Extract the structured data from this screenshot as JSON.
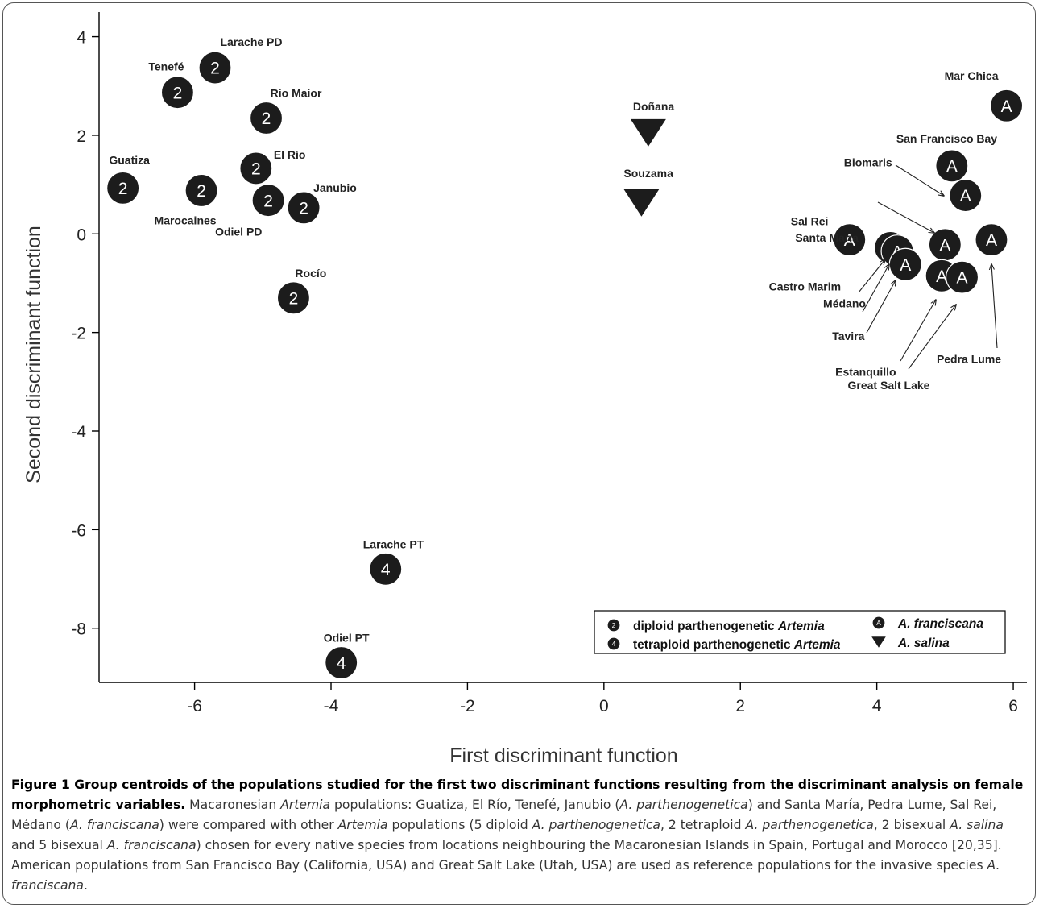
{
  "chart_data": {
    "type": "scatter",
    "xlabel": "First discriminant function",
    "ylabel": "Second discriminant function",
    "xlim": [
      -7.4,
      6.2
    ],
    "ylim": [
      -9.1,
      4.5
    ],
    "xticks": [
      "-6",
      "-4",
      "-2",
      "0",
      "2",
      "4",
      "6"
    ],
    "yticks": [
      "4",
      "2",
      "0",
      "-2",
      "-4",
      "-6",
      "-8"
    ],
    "points": [
      {
        "label": "Guatiza",
        "x": -7.05,
        "y": 0.93,
        "marker": "2",
        "group": "diploid"
      },
      {
        "label": "Marocaines",
        "x": -5.9,
        "y": 0.88,
        "marker": "2",
        "group": "diploid"
      },
      {
        "label": "Tenefé",
        "x": -6.25,
        "y": 2.87,
        "marker": "2",
        "group": "diploid"
      },
      {
        "label": "Larache PD",
        "x": -5.7,
        "y": 3.37,
        "marker": "2",
        "group": "diploid"
      },
      {
        "label": "Rio Maior",
        "x": -4.95,
        "y": 2.35,
        "marker": "2",
        "group": "diploid"
      },
      {
        "label": "El Río",
        "x": -5.1,
        "y": 1.33,
        "marker": "2",
        "group": "diploid"
      },
      {
        "label": "Odiel PD",
        "x": -4.92,
        "y": 0.68,
        "marker": "2",
        "group": "diploid"
      },
      {
        "label": "Janubio",
        "x": -4.4,
        "y": 0.53,
        "marker": "2",
        "group": "diploid"
      },
      {
        "label": "Rocío",
        "x": -4.55,
        "y": -1.3,
        "marker": "2",
        "group": "diploid"
      },
      {
        "label": "Larache PT",
        "x": -3.2,
        "y": -6.8,
        "marker": "4",
        "group": "tetraploid"
      },
      {
        "label": "Odiel PT",
        "x": -3.85,
        "y": -8.7,
        "marker": "4",
        "group": "tetraploid"
      },
      {
        "label": "Doñana",
        "x": 0.65,
        "y": 2.05,
        "marker": "tri",
        "group": "salina"
      },
      {
        "label": "Souzama",
        "x": 0.55,
        "y": 0.63,
        "marker": "tri",
        "group": "salina"
      },
      {
        "label": "Mar Chica",
        "x": 5.9,
        "y": 2.6,
        "marker": "A",
        "group": "franciscana"
      },
      {
        "label": "San Francisco Bay",
        "x": 5.1,
        "y": 1.38,
        "marker": "A",
        "group": "franciscana"
      },
      {
        "label": "Biomaris",
        "x": 5.3,
        "y": 0.78,
        "marker": "A",
        "group": "franciscana"
      },
      {
        "label": "Sal Rei",
        "x": 3.6,
        "y": -0.12,
        "marker": "A",
        "group": "franciscana"
      },
      {
        "label": "Castro Marim",
        "x": 4.2,
        "y": -0.28,
        "marker": "A",
        "group": "franciscana"
      },
      {
        "label": "Médano",
        "x": 4.3,
        "y": -0.35,
        "marker": "A",
        "group": "franciscana"
      },
      {
        "label": "Tavira",
        "x": 4.42,
        "y": -0.62,
        "marker": "A",
        "group": "franciscana"
      },
      {
        "label": "Santa Maria",
        "x": 5.0,
        "y": -0.22,
        "marker": "A",
        "group": "franciscana"
      },
      {
        "label": "Pedra Lume",
        "x": 5.68,
        "y": -0.12,
        "marker": "A",
        "group": "franciscana"
      },
      {
        "label": "Estanquillo",
        "x": 4.95,
        "y": -0.85,
        "marker": "A",
        "group": "franciscana"
      },
      {
        "label": "Great Salt Lake",
        "x": 5.25,
        "y": -0.88,
        "marker": "A",
        "group": "franciscana"
      }
    ],
    "legend": {
      "placement": "bottom-right",
      "items": [
        {
          "symbol": "2",
          "text": "diploid parthenogenetic ",
          "italic": "Artemia"
        },
        {
          "symbol": "4",
          "text": "tetraploid parthenogenetic ",
          "italic": "Artemia"
        },
        {
          "symbol": "A",
          "text": "",
          "italic": "A. franciscana"
        },
        {
          "symbol": "tri",
          "text": "",
          "italic": "A. salina"
        }
      ]
    },
    "colors": {
      "marker": "#1c1c1c",
      "marker_text": "#ffffff",
      "axis": "#000000"
    }
  },
  "caption": {
    "lead": "Figure 1 Group centroids of the populations studied for the first two discriminant functions resulting from the discriminant analysis on female morphometric variables.",
    "parts": [
      {
        "t": " Macaronesian "
      },
      {
        "i": "Artemia"
      },
      {
        "t": " populations: Guatiza, El Río, Tenefé, Janubio ("
      },
      {
        "i": "A. parthenogenetica"
      },
      {
        "t": ") and Santa María, Pedra Lume, Sal Rei, Médano ("
      },
      {
        "i": "A. franciscana"
      },
      {
        "t": ") were compared with other "
      },
      {
        "i": "Artemia"
      },
      {
        "t": " populations (5 diploid "
      },
      {
        "i": "A. parthenogenetica"
      },
      {
        "t": ", 2 tetraploid "
      },
      {
        "i": "A. parthenogenetica"
      },
      {
        "t": ", 2 bisexual "
      },
      {
        "i": "A. salina"
      },
      {
        "t": " and 5 bisexual "
      },
      {
        "i": "A. franciscana"
      },
      {
        "t": ") chosen for every native species from locations neighbouring the Macaronesian Islands in Spain, Portugal and Morocco [20,35]. American populations from San Francisco Bay (California, USA) and Great Salt Lake (Utah, USA) are used as reference populations for the invasive species "
      },
      {
        "i": "A. franciscana"
      },
      {
        "t": "."
      }
    ]
  }
}
